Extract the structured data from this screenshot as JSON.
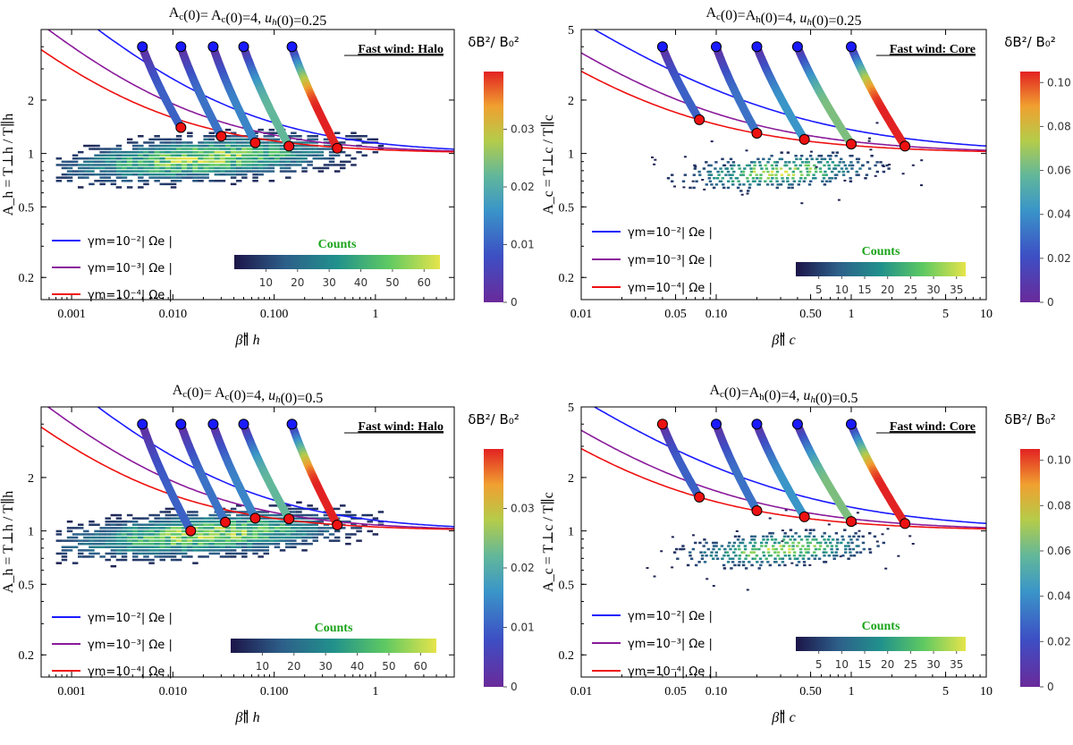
{
  "chart_data": [
    {
      "type": "scatter",
      "panel": "top-left",
      "title": "A_c(0)= A_c(0)=4, u_h(0)=0.25",
      "xlabel": "β̃∥ h",
      "ylabel": "A_h = T⊥h / T∥h",
      "xscale": "log",
      "yscale": "log",
      "xlim": [
        0.0005,
        6
      ],
      "ylim": [
        0.15,
        5
      ],
      "xticks": [
        {
          "v": 0.001,
          "label": "0.001"
        },
        {
          "v": 0.01,
          "label": "0.010"
        },
        {
          "v": 0.1,
          "label": "0.100"
        },
        {
          "v": 1,
          "label": "1"
        }
      ],
      "yticks": [
        {
          "v": 0.2,
          "label": "0.2"
        },
        {
          "v": 0.5,
          "label": "0.5"
        },
        {
          "v": 1,
          "label": "1"
        },
        {
          "v": 2,
          "label": "2"
        }
      ],
      "box_label": "Fast wind: Halo",
      "thresholds": [
        {
          "name": "γm=10⁻²|Ωe|",
          "color": "#1a1aff",
          "a": 1.05,
          "b": 0.0,
          "S": 0.24
        },
        {
          "name": "γm=10⁻³|Ωe|",
          "color": "#8a1a9a",
          "a": 0.58,
          "b": 0.0,
          "S": 0.24
        },
        {
          "name": "γm=10⁻⁴|Ωe|",
          "color": "#ee1111",
          "a": 0.38,
          "b": 0.0,
          "S": 0.24
        }
      ],
      "legend": [
        "γm=10⁻²| Ωe |",
        "γm=10⁻³| Ωe |",
        "γm=10⁻⁴| Ωe |"
      ],
      "trajectories": [
        {
          "start": [
            0.005,
            4.0
          ],
          "end": [
            0.012,
            1.4
          ],
          "maxfrac": 0.25
        },
        {
          "start": [
            0.012,
            4.0
          ],
          "end": [
            0.03,
            1.25
          ],
          "maxfrac": 0.3
        },
        {
          "start": [
            0.025,
            4.0
          ],
          "end": [
            0.065,
            1.15
          ],
          "maxfrac": 0.35
        },
        {
          "start": [
            0.05,
            4.0
          ],
          "end": [
            0.14,
            1.1
          ],
          "maxfrac": 0.55
        },
        {
          "start": [
            0.15,
            4.0
          ],
          "end": [
            0.42,
            1.07
          ],
          "maxfrac": 1.0
        }
      ],
      "histogram": {
        "center": [
          0.02,
          0.95
        ],
        "xspan": [
          0.0007,
          1.2
        ],
        "yspread": 0.32,
        "counts_max": 60
      },
      "colorbar": {
        "title": "δB²/ B₀²",
        "max": 0.04,
        "ticks": [
          {
            "v": 0,
            "label": "0"
          },
          {
            "v": 0.01,
            "label": "0.01"
          },
          {
            "v": 0.02,
            "label": "0.02"
          },
          {
            "v": 0.03,
            "label": "0.03"
          }
        ]
      },
      "counts_bar": {
        "title": "Counts",
        "ticks": [
          {
            "v": 10,
            "label": "10"
          },
          {
            "v": 20,
            "label": "20"
          },
          {
            "v": 30,
            "label": "30"
          },
          {
            "v": 40,
            "label": "40"
          },
          {
            "v": 50,
            "label": "50"
          },
          {
            "v": 60,
            "label": "60"
          }
        ],
        "max": 65
      }
    },
    {
      "type": "scatter",
      "panel": "top-right",
      "title": "A_c(0)=A_h(0)=4, u_h(0)=0.25",
      "xlabel": "β̃∥ c",
      "ylabel": "A_c = T⊥c / T∥c",
      "xscale": "log",
      "yscale": "log",
      "xlim": [
        0.01,
        10
      ],
      "ylim": [
        0.15,
        5
      ],
      "xticks": [
        {
          "v": 0.01,
          "label": "0.01"
        },
        {
          "v": 0.05,
          "label": "0.05"
        },
        {
          "v": 0.1,
          "label": "0.10"
        },
        {
          "v": 0.5,
          "label": "0.50"
        },
        {
          "v": 1,
          "label": "1"
        },
        {
          "v": 5,
          "label": "5"
        },
        {
          "v": 10,
          "label": "10"
        }
      ],
      "yticks": [
        {
          "v": 0.2,
          "label": "0.2"
        },
        {
          "v": 0.5,
          "label": "0.5"
        },
        {
          "v": 1,
          "label": "1"
        },
        {
          "v": 2,
          "label": "2"
        },
        {
          "v": 5,
          "label": "5"
        }
      ],
      "box_label": "Fast wind: Core",
      "thresholds": [
        {
          "name": "γm=10⁻²|Ωe|",
          "color": "#1a1aff",
          "a": 0.36,
          "b": 0.55,
          "S": 0.0
        },
        {
          "name": "γm=10⁻³|Ωe|",
          "color": "#8a1a9a",
          "a": 0.17,
          "b": 0.6,
          "S": 0.0
        },
        {
          "name": "γm=10⁻⁴|Ωe|",
          "color": "#ee1111",
          "a": 0.11,
          "b": 0.62,
          "S": 0.0
        }
      ],
      "legend": [
        "γm=10⁻²| Ωe |",
        "γm=10⁻³| Ωe |",
        "γm=10⁻⁴| Ωe |"
      ],
      "trajectories": [
        {
          "start": [
            0.04,
            4.0
          ],
          "end": [
            0.075,
            1.55
          ],
          "maxfrac": 0.25
        },
        {
          "start": [
            0.1,
            4.0
          ],
          "end": [
            0.2,
            1.3
          ],
          "maxfrac": 0.3
        },
        {
          "start": [
            0.2,
            4.0
          ],
          "end": [
            0.45,
            1.2
          ],
          "maxfrac": 0.4
        },
        {
          "start": [
            0.4,
            4.0
          ],
          "end": [
            1.0,
            1.13
          ],
          "maxfrac": 0.6
        },
        {
          "start": [
            1.0,
            4.0
          ],
          "end": [
            2.5,
            1.1
          ],
          "maxfrac": 1.0
        }
      ],
      "histogram": {
        "center": [
          0.3,
          0.8
        ],
        "xspan": [
          0.03,
          8
        ],
        "yspread": 0.28,
        "counts_max": 35,
        "sparse": true
      },
      "colorbar": {
        "title": "δB²/ B₀²",
        "max": 0.105,
        "ticks": [
          {
            "v": 0,
            "label": "0"
          },
          {
            "v": 0.02,
            "label": "0.02"
          },
          {
            "v": 0.04,
            "label": "0.04"
          },
          {
            "v": 0.06,
            "label": "0.06"
          },
          {
            "v": 0.08,
            "label": "0.08"
          },
          {
            "v": 0.1,
            "label": "0.10"
          }
        ]
      },
      "counts_bar": {
        "title": "Counts",
        "ticks": [
          {
            "v": 5,
            "label": "5"
          },
          {
            "v": 10,
            "label": "10"
          },
          {
            "v": 15,
            "label": "15"
          },
          {
            "v": 20,
            "label": "20"
          },
          {
            "v": 25,
            "label": "25"
          },
          {
            "v": 30,
            "label": "30"
          },
          {
            "v": 35,
            "label": "35"
          }
        ],
        "max": 37
      }
    },
    {
      "type": "scatter",
      "panel": "bottom-left",
      "title": "A_c(0)= A_c(0)=4, u_h(0)=0.5",
      "xlabel": "β̃∥ h",
      "ylabel": "A_h = T⊥h / T∥h",
      "xscale": "log",
      "yscale": "log",
      "xlim": [
        0.0005,
        6
      ],
      "ylim": [
        0.15,
        5
      ],
      "xticks": [
        {
          "v": 0.001,
          "label": "0.001"
        },
        {
          "v": 0.01,
          "label": "0.010"
        },
        {
          "v": 0.1,
          "label": "0.100"
        },
        {
          "v": 1,
          "label": "1"
        }
      ],
      "yticks": [
        {
          "v": 0.2,
          "label": "0.2"
        },
        {
          "v": 0.5,
          "label": "0.5"
        },
        {
          "v": 1,
          "label": "1"
        },
        {
          "v": 2,
          "label": "2"
        }
      ],
      "box_label": "Fast wind: Halo",
      "thresholds": [
        {
          "name": "γm=10⁻²|Ωe|",
          "color": "#1a1aff",
          "a": 1.05,
          "b": 0.0,
          "S": 0.24
        },
        {
          "name": "γm=10⁻³|Ωe|",
          "color": "#8a1a9a",
          "a": 0.58,
          "b": 0.0,
          "S": 0.24
        },
        {
          "name": "γm=10⁻⁴|Ωe|",
          "color": "#ee1111",
          "a": 0.38,
          "b": 0.0,
          "S": 0.24
        }
      ],
      "legend": [
        "γm=10⁻²| Ωe |",
        "γm=10⁻³| Ωe |",
        "γm=10⁻⁴| Ωe |"
      ],
      "trajectories": [
        {
          "start": [
            0.005,
            4.0
          ],
          "end": [
            0.015,
            1.0
          ],
          "maxfrac": 0.25
        },
        {
          "start": [
            0.012,
            4.0
          ],
          "end": [
            0.033,
            1.12
          ],
          "maxfrac": 0.3
        },
        {
          "start": [
            0.025,
            4.0
          ],
          "end": [
            0.065,
            1.18
          ],
          "maxfrac": 0.35
        },
        {
          "start": [
            0.05,
            4.0
          ],
          "end": [
            0.14,
            1.17
          ],
          "maxfrac": 0.55
        },
        {
          "start": [
            0.15,
            4.0
          ],
          "end": [
            0.42,
            1.08
          ],
          "maxfrac": 1.0
        }
      ],
      "histogram": {
        "center": [
          0.02,
          0.97
        ],
        "xspan": [
          0.0007,
          1.2
        ],
        "yspread": 0.32,
        "counts_max": 60
      },
      "colorbar": {
        "title": "δB²/ B₀²",
        "max": 0.04,
        "ticks": [
          {
            "v": 0,
            "label": "0"
          },
          {
            "v": 0.01,
            "label": "0.01"
          },
          {
            "v": 0.02,
            "label": "0.02"
          },
          {
            "v": 0.03,
            "label": "0.03"
          }
        ]
      },
      "counts_bar": {
        "title": "Counts",
        "ticks": [
          {
            "v": 10,
            "label": "10"
          },
          {
            "v": 20,
            "label": "20"
          },
          {
            "v": 30,
            "label": "30"
          },
          {
            "v": 40,
            "label": "40"
          },
          {
            "v": 50,
            "label": "50"
          },
          {
            "v": 60,
            "label": "60"
          }
        ],
        "max": 65
      }
    },
    {
      "type": "scatter",
      "panel": "bottom-right",
      "title": "A_c(0)=A_h(0)=4, u_h(0)=0.5",
      "xlabel": "β̃∥ c",
      "ylabel": "A_c = T⊥c / T∥c",
      "xscale": "log",
      "yscale": "log",
      "xlim": [
        0.01,
        10
      ],
      "ylim": [
        0.15,
        5
      ],
      "xticks": [
        {
          "v": 0.01,
          "label": "0.01"
        },
        {
          "v": 0.05,
          "label": "0.05"
        },
        {
          "v": 0.1,
          "label": "0.10"
        },
        {
          "v": 0.5,
          "label": "0.50"
        },
        {
          "v": 1,
          "label": "1"
        },
        {
          "v": 5,
          "label": "5"
        },
        {
          "v": 10,
          "label": "10"
        }
      ],
      "yticks": [
        {
          "v": 0.2,
          "label": "0.2"
        },
        {
          "v": 0.5,
          "label": "0.5"
        },
        {
          "v": 1,
          "label": "1"
        },
        {
          "v": 2,
          "label": "2"
        },
        {
          "v": 5,
          "label": "5"
        }
      ],
      "box_label": "Fast wind: Core",
      "thresholds": [
        {
          "name": "γm=10⁻²|Ωe|",
          "color": "#1a1aff",
          "a": 0.36,
          "b": 0.55,
          "S": 0.0
        },
        {
          "name": "γm=10⁻³|Ωe|",
          "color": "#8a1a9a",
          "a": 0.17,
          "b": 0.6,
          "S": 0.0
        },
        {
          "name": "γm=10⁻⁴|Ωe|",
          "color": "#ee1111",
          "a": 0.11,
          "b": 0.62,
          "S": 0.0
        }
      ],
      "legend": [
        "γm=10⁻²| Ωe |",
        "γm=10⁻³| Ωe |",
        "γm=10⁻⁴| Ωe |"
      ],
      "trajectories": [
        {
          "start": [
            0.04,
            4.0
          ],
          "end": [
            0.075,
            1.55
          ],
          "maxfrac": 0.25,
          "redstart": true
        },
        {
          "start": [
            0.1,
            4.0
          ],
          "end": [
            0.2,
            1.3
          ],
          "maxfrac": 0.3
        },
        {
          "start": [
            0.2,
            4.0
          ],
          "end": [
            0.45,
            1.2
          ],
          "maxfrac": 0.4
        },
        {
          "start": [
            0.4,
            4.0
          ],
          "end": [
            1.0,
            1.13
          ],
          "maxfrac": 0.6
        },
        {
          "start": [
            1.0,
            4.0
          ],
          "end": [
            2.5,
            1.1
          ],
          "maxfrac": 1.0
        }
      ],
      "histogram": {
        "center": [
          0.3,
          0.8
        ],
        "xspan": [
          0.03,
          8
        ],
        "yspread": 0.28,
        "counts_max": 35,
        "sparse": true
      },
      "colorbar": {
        "title": "δB²/ B₀²",
        "max": 0.105,
        "ticks": [
          {
            "v": 0,
            "label": "0"
          },
          {
            "v": 0.02,
            "label": "0.02"
          },
          {
            "v": 0.04,
            "label": "0.04"
          },
          {
            "v": 0.06,
            "label": "0.06"
          },
          {
            "v": 0.08,
            "label": "0.08"
          },
          {
            "v": 0.1,
            "label": "0.10"
          }
        ]
      },
      "counts_bar": {
        "title": "Counts",
        "ticks": [
          {
            "v": 5,
            "label": "5"
          },
          {
            "v": 10,
            "label": "10"
          },
          {
            "v": 15,
            "label": "15"
          },
          {
            "v": 20,
            "label": "20"
          },
          {
            "v": 25,
            "label": "25"
          },
          {
            "v": 30,
            "label": "30"
          },
          {
            "v": 35,
            "label": "35"
          }
        ],
        "max": 37
      }
    }
  ]
}
